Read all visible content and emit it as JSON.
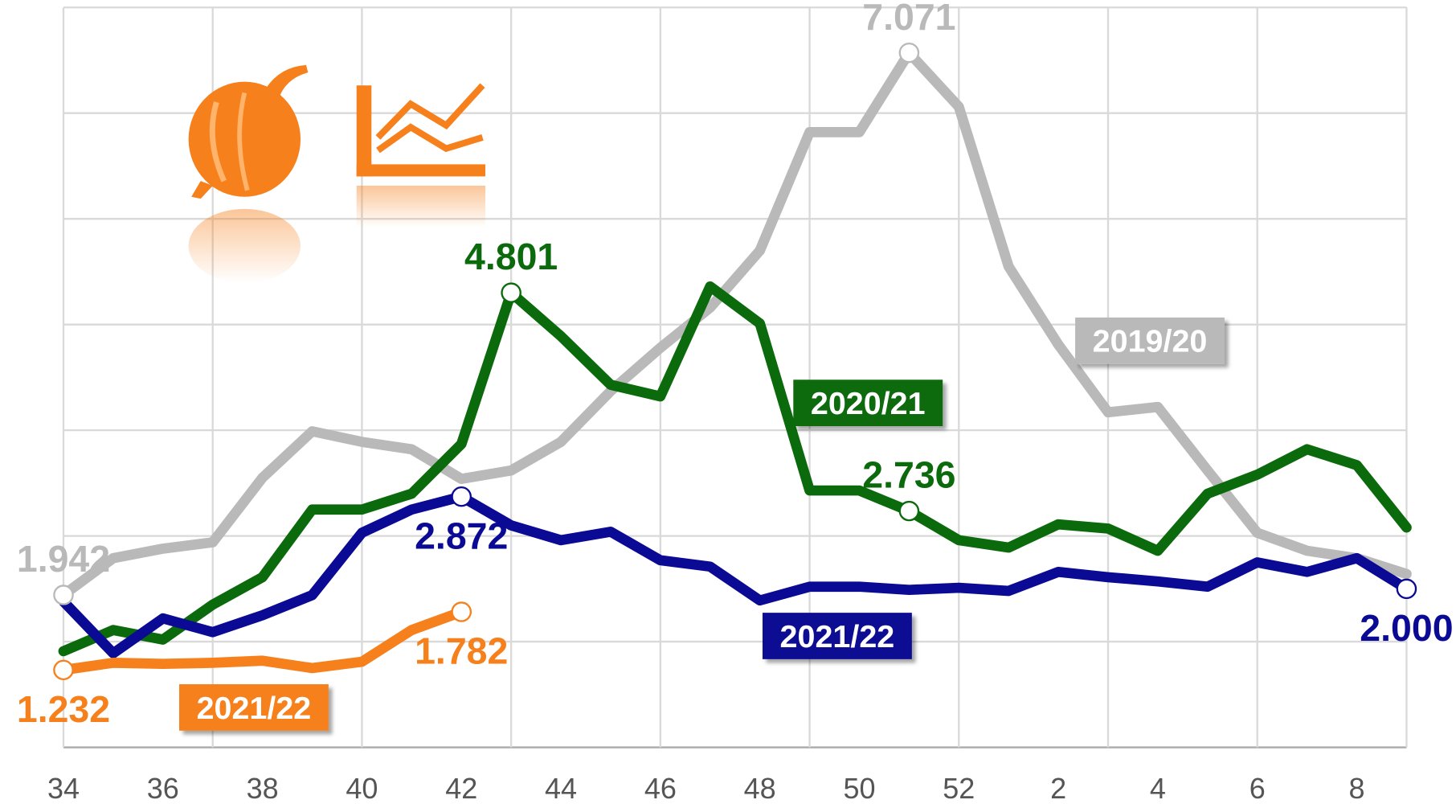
{
  "chart_data": {
    "type": "line",
    "categories": [
      "34",
      null,
      "36",
      null,
      "38",
      null,
      "40",
      null,
      "42",
      null,
      "44",
      null,
      "46",
      null,
      "48",
      null,
      "50",
      null,
      "52",
      null,
      "2",
      null,
      "4",
      null,
      "6",
      null,
      "8",
      null
    ],
    "series": [
      {
        "name": "2019/20",
        "color": "#b9b9b9",
        "values": [
          1.942,
          2.29,
          2.38,
          2.44,
          3.05,
          3.49,
          3.39,
          3.32,
          3.04,
          3.12,
          3.39,
          3.87,
          4.28,
          4.66,
          5.2,
          6.32,
          6.32,
          7.071,
          6.56,
          5.05,
          4.31,
          3.67,
          3.72,
          3.12,
          2.53,
          2.36,
          2.29,
          2.14
        ],
        "value_labels": [
          "1.942",
          null,
          null,
          null,
          null,
          null,
          null,
          null,
          null,
          null,
          null,
          null,
          null,
          null,
          null,
          null,
          null,
          "7.071",
          null,
          null,
          null,
          null,
          null,
          null,
          null,
          null,
          null,
          null
        ]
      },
      {
        "name": "2020/21",
        "color": "#0b6a0b",
        "values": [
          1.41,
          1.61,
          1.52,
          1.85,
          2.11,
          2.75,
          2.75,
          2.9,
          3.37,
          4.801,
          4.39,
          3.93,
          3.82,
          4.86,
          4.51,
          2.93,
          2.93,
          2.736,
          2.46,
          2.39,
          2.61,
          2.57,
          2.36,
          2.9,
          3.08,
          3.32,
          3.17,
          2.58
        ],
        "value_labels": [
          null,
          null,
          null,
          null,
          null,
          null,
          null,
          null,
          null,
          "4.801",
          null,
          null,
          null,
          null,
          null,
          null,
          null,
          "2.736",
          null,
          null,
          null,
          null,
          null,
          null,
          null,
          null,
          null,
          null
        ]
      },
      {
        "name": "2021/22",
        "color": "#0a0a94",
        "values": [
          1.88,
          1.39,
          1.72,
          1.59,
          1.75,
          1.94,
          2.53,
          2.75,
          2.872,
          2.6,
          2.46,
          2.54,
          2.27,
          2.21,
          1.89,
          2.02,
          2.02,
          1.99,
          2.01,
          1.98,
          2.16,
          2.11,
          2.07,
          2.02,
          2.25,
          2.16,
          2.29,
          2.0
        ],
        "value_labels": [
          null,
          null,
          null,
          null,
          null,
          null,
          null,
          null,
          "2.872",
          null,
          null,
          null,
          null,
          null,
          null,
          null,
          null,
          null,
          null,
          null,
          null,
          null,
          null,
          null,
          null,
          null,
          null,
          "2.000"
        ]
      },
      {
        "name": "2021/22",
        "color": "#f6801c",
        "values": [
          1.232,
          1.3,
          1.29,
          1.3,
          1.32,
          1.25,
          1.31,
          1.61,
          1.782,
          null,
          null,
          null,
          null,
          null,
          null,
          null,
          null,
          null,
          null,
          null,
          null,
          null,
          null,
          null,
          null,
          null,
          null,
          null
        ],
        "value_labels": [
          "1.232",
          null,
          null,
          null,
          null,
          null,
          null,
          null,
          "1.782",
          null,
          null,
          null,
          null,
          null,
          null,
          null,
          null,
          null,
          null,
          null,
          null,
          null,
          null,
          null,
          null,
          null,
          null,
          null
        ]
      }
    ],
    "ylim": [
      0.5,
      7.5
    ],
    "yticks": [
      0.5,
      1.5,
      2.5,
      3.5,
      4.5,
      5.5,
      6.5,
      7.5
    ],
    "grid": true
  }
}
